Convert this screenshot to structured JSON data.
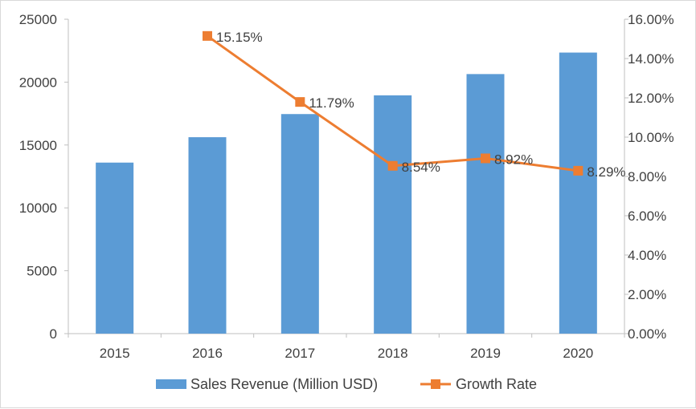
{
  "chart_data": {
    "type": "bar",
    "title": "",
    "categories": [
      "2015",
      "2016",
      "2017",
      "2018",
      "2019",
      "2020"
    ],
    "series": [
      {
        "name": "Sales Revenue (Million USD)",
        "type": "bar",
        "axis": "left",
        "color": "#5B9BD5",
        "values": [
          13600,
          15620,
          17460,
          18950,
          20640,
          22350
        ]
      },
      {
        "name": "Growth Rate",
        "type": "line",
        "axis": "right",
        "color": "#ED7D31",
        "values": [
          null,
          15.15,
          11.79,
          8.54,
          8.92,
          8.29
        ],
        "data_labels": [
          "",
          "15.15%",
          "11.79%",
          "8.54%",
          "8.92%",
          "8.29%"
        ]
      }
    ],
    "y_left": {
      "range": [
        0,
        25000
      ],
      "ticks": [
        0,
        5000,
        10000,
        15000,
        20000,
        25000
      ],
      "tick_labels": [
        "0",
        "5000",
        "10000",
        "15000",
        "20000",
        "25000"
      ]
    },
    "y_right": {
      "range": [
        0,
        16
      ],
      "ticks": [
        0,
        2,
        4,
        6,
        8,
        10,
        12,
        14,
        16
      ],
      "tick_labels": [
        "0.00%",
        "2.00%",
        "4.00%",
        "6.00%",
        "8.00%",
        "10.00%",
        "12.00%",
        "14.00%",
        "16.00%"
      ]
    },
    "legend": {
      "position": "bottom",
      "entries": [
        "Sales Revenue (Million USD)",
        "Growth Rate"
      ]
    },
    "grid": false
  }
}
